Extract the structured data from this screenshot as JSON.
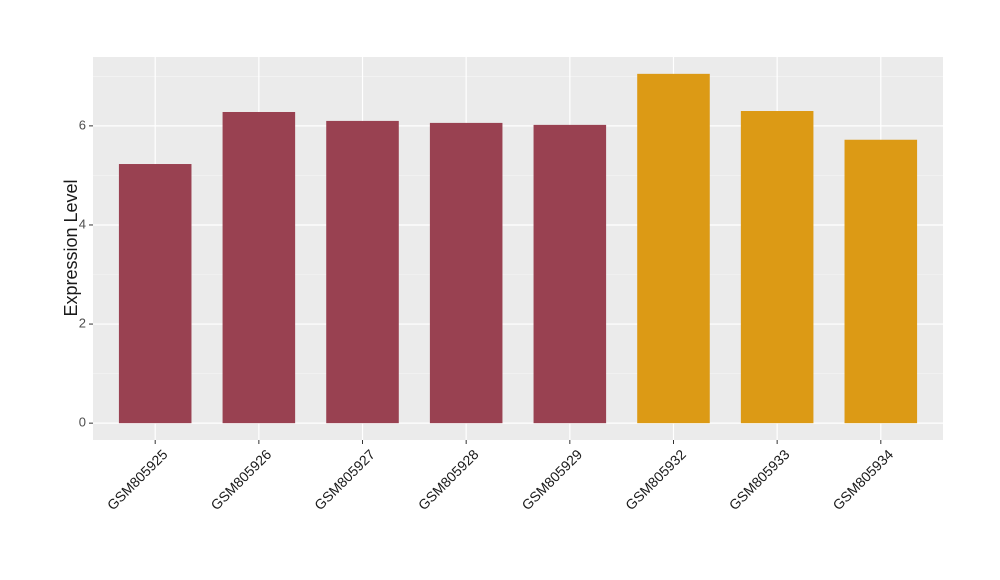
{
  "chart_data": {
    "type": "bar",
    "y_label": "Expression Level",
    "categories": [
      "GSM805925",
      "GSM805926",
      "GSM805927",
      "GSM805928",
      "GSM805929",
      "GSM805932",
      "GSM805933",
      "GSM805934"
    ],
    "values": [
      5.23,
      6.28,
      6.1,
      6.06,
      6.02,
      7.05,
      6.3,
      5.72
    ],
    "colors": [
      "#994151",
      "#994151",
      "#994151",
      "#994151",
      "#994151",
      "#dc9a15",
      "#dc9a15",
      "#dc9a15"
    ],
    "ylim": [
      -0.34,
      7.39
    ],
    "yticks": [
      0,
      2,
      4,
      6
    ],
    "grid": true
  }
}
